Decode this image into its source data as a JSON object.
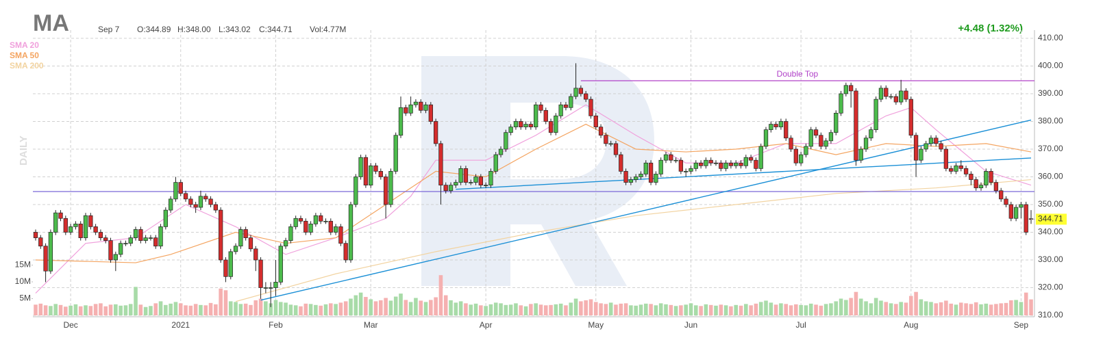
{
  "chart_data": {
    "type": "candlestick",
    "symbol": "MA",
    "date": "Sep 7",
    "ohlc_texts": [
      "O:344.89",
      "H:348.00",
      "L:343.02",
      "C:344.71"
    ],
    "volume_text": "Vol:4.77M",
    "change": "+4.48 (1.32%)",
    "interval": "DAILY",
    "up_color": "#4cbb4c",
    "down_color": "#d42d2d",
    "volume_up_color": "#a8dba8",
    "volume_down_color": "#f5b0b0",
    "categories": [
      null,
      null,
      null,
      null,
      null,
      null,
      null,
      "Dec",
      null,
      null,
      null,
      null,
      null,
      null,
      null,
      null,
      null,
      null,
      null,
      null,
      null,
      null,
      null,
      null,
      null,
      null,
      null,
      null,
      null,
      "2021",
      null,
      null,
      null,
      null,
      null,
      null,
      null,
      null,
      null,
      null,
      null,
      null,
      null,
      null,
      null,
      null,
      null,
      null,
      "Feb",
      null,
      null,
      null,
      null,
      null,
      null,
      null,
      null,
      null,
      null,
      null,
      null,
      null,
      null,
      null,
      null,
      null,
      null,
      "Mar",
      null,
      null,
      null,
      null,
      null,
      null,
      null,
      null,
      null,
      null,
      null,
      null,
      null,
      null,
      null,
      null,
      null,
      null,
      null,
      null,
      null,
      null,
      "Apr",
      null,
      null,
      null,
      null,
      null,
      null,
      null,
      null,
      null,
      null,
      null,
      null,
      null,
      null,
      null,
      null,
      null,
      null,
      null,
      null,
      null,
      "May",
      null,
      null,
      null,
      null,
      null,
      null,
      null,
      null,
      null,
      null,
      null,
      null,
      null,
      null,
      null,
      null,
      null,
      null,
      "Jun",
      null,
      null,
      null,
      null,
      null,
      null,
      null,
      null,
      null,
      null,
      null,
      null,
      null,
      null,
      null,
      null,
      null,
      null,
      null,
      null,
      null,
      "Jul",
      null,
      null,
      null,
      null,
      null,
      null,
      null,
      null,
      null,
      null,
      null,
      null,
      null,
      null,
      null,
      null,
      null,
      null,
      null,
      null,
      null,
      "Aug",
      null,
      null,
      null,
      null,
      null,
      null,
      null,
      null,
      null,
      null,
      null,
      null,
      null,
      null,
      null,
      null,
      null,
      null,
      null,
      null,
      null,
      "Sep",
      null,
      null
    ],
    "open": [
      340,
      338,
      335,
      326,
      340,
      347,
      345,
      340,
      342,
      343,
      338,
      346,
      342,
      340,
      338,
      337,
      330,
      332,
      336,
      336,
      338,
      341,
      337,
      338,
      338,
      335,
      342,
      348,
      352,
      358,
      354,
      352,
      350,
      349,
      353,
      352,
      350,
      348,
      330,
      324,
      333,
      335,
      341,
      338,
      334,
      330,
      320,
      320,
      320,
      322,
      335,
      337,
      342,
      345,
      344,
      340,
      343,
      346,
      344,
      344,
      340,
      342,
      336,
      330,
      350,
      360,
      367,
      357,
      364,
      362,
      360,
      350,
      362,
      375,
      385,
      383,
      386,
      387,
      384,
      386,
      380,
      372,
      357,
      355,
      357,
      358,
      363,
      358,
      358,
      360,
      357,
      357,
      362,
      368,
      370,
      376,
      378,
      380,
      378,
      379,
      378,
      386,
      384,
      380,
      376,
      382,
      386,
      385,
      389,
      392,
      390,
      388,
      382,
      378,
      375,
      372,
      372,
      368,
      362,
      358,
      359,
      360,
      361,
      365,
      358,
      361,
      366,
      368,
      366,
      366,
      362,
      362,
      363,
      365,
      364,
      366,
      365,
      365,
      363,
      365,
      364,
      365,
      364,
      367,
      366,
      363,
      371,
      377,
      379,
      378,
      380,
      374,
      370,
      365,
      368,
      371,
      377,
      375,
      371,
      373,
      376,
      383,
      390,
      393,
      391,
      366,
      370,
      374,
      377,
      388,
      392,
      389,
      389,
      387,
      391,
      388,
      375,
      366,
      370,
      372,
      374,
      372,
      370,
      363,
      362,
      364,
      363,
      361,
      359,
      356,
      357,
      362,
      358,
      355,
      352,
      350,
      345,
      349,
      350,
      344.89
    ],
    "high": [
      341,
      339,
      336,
      341,
      348,
      348,
      346,
      343,
      344,
      344,
      347,
      347,
      343,
      341,
      339,
      338,
      333,
      337,
      337,
      339,
      342,
      342,
      339,
      339,
      339,
      343,
      349,
      353,
      360,
      359,
      355,
      353,
      351,
      355,
      354,
      353,
      351,
      349,
      331,
      334,
      336,
      342,
      342,
      339,
      335,
      331,
      322,
      322,
      330,
      336,
      338,
      343,
      346,
      346,
      345,
      344,
      347,
      347,
      345,
      345,
      343,
      343,
      337,
      351,
      361,
      368,
      368,
      365,
      365,
      363,
      361,
      363,
      376,
      389,
      386,
      389,
      388,
      388,
      387,
      387,
      381,
      373,
      358,
      358,
      359,
      364,
      364,
      359,
      361,
      361,
      358,
      363,
      369,
      371,
      377,
      379,
      381,
      381,
      380,
      380,
      387,
      387,
      385,
      381,
      383,
      387,
      387,
      390,
      401,
      393,
      391,
      389,
      383,
      379,
      376,
      373,
      373,
      369,
      363,
      360,
      361,
      362,
      366,
      366,
      362,
      367,
      369,
      369,
      367,
      367,
      363,
      364,
      366,
      366,
      367,
      367,
      366,
      366,
      366,
      366,
      366,
      366,
      368,
      368,
      367,
      372,
      378,
      380,
      380,
      381,
      381,
      375,
      371,
      369,
      372,
      378,
      378,
      376,
      374,
      377,
      384,
      391,
      394,
      394,
      392,
      371,
      375,
      378,
      389,
      393,
      393,
      390,
      390,
      395,
      392,
      389,
      376,
      371,
      373,
      375,
      375,
      373,
      371,
      364,
      365,
      366,
      364,
      362,
      360,
      358,
      363,
      363,
      359,
      356,
      353,
      351,
      350,
      351,
      351,
      348
    ],
    "low": [
      337,
      334,
      322,
      325,
      339,
      344,
      339,
      339,
      341,
      337,
      337,
      341,
      339,
      337,
      336,
      329,
      326,
      331,
      335,
      335,
      337,
      336,
      336,
      337,
      334,
      334,
      341,
      347,
      351,
      353,
      351,
      349,
      347,
      348,
      351,
      349,
      347,
      329,
      322,
      323,
      332,
      334,
      337,
      333,
      326,
      316,
      318,
      313,
      317,
      321,
      334,
      336,
      341,
      343,
      339,
      339,
      342,
      343,
      343,
      339,
      339,
      335,
      329,
      329,
      349,
      359,
      356,
      356,
      361,
      359,
      345,
      349,
      361,
      374,
      382,
      382,
      385,
      383,
      383,
      379,
      371,
      350,
      354,
      354,
      356,
      357,
      357,
      357,
      357,
      356,
      356,
      356,
      361,
      367,
      369,
      375,
      377,
      377,
      377,
      377,
      377,
      383,
      379,
      375,
      375,
      381,
      384,
      384,
      388,
      389,
      387,
      381,
      377,
      374,
      371,
      371,
      367,
      361,
      357,
      357,
      358,
      359,
      360,
      357,
      357,
      360,
      365,
      365,
      365,
      361,
      360,
      361,
      362,
      363,
      363,
      364,
      364,
      362,
      362,
      363,
      363,
      363,
      363,
      365,
      362,
      362,
      370,
      376,
      377,
      377,
      373,
      369,
      364,
      364,
      367,
      370,
      374,
      370,
      370,
      372,
      375,
      382,
      389,
      385,
      364,
      365,
      369,
      373,
      376,
      387,
      388,
      388,
      386,
      386,
      387,
      374,
      360,
      365,
      369,
      371,
      371,
      369,
      362,
      361,
      361,
      362,
      360,
      357,
      355,
      355,
      356,
      357,
      354,
      351,
      349,
      344,
      344,
      345,
      339,
      343.02
    ],
    "close": [
      338,
      335,
      326,
      340,
      347,
      345,
      340,
      342,
      343,
      338,
      346,
      342,
      340,
      338,
      337,
      330,
      332,
      336,
      336,
      338,
      341,
      337,
      338,
      338,
      335,
      342,
      348,
      352,
      358,
      354,
      352,
      350,
      349,
      353,
      352,
      350,
      348,
      330,
      324,
      333,
      335,
      341,
      338,
      334,
      330,
      320,
      320,
      320,
      322,
      335,
      337,
      342,
      345,
      344,
      340,
      343,
      346,
      344,
      344,
      340,
      342,
      336,
      330,
      350,
      360,
      367,
      357,
      364,
      362,
      360,
      350,
      362,
      375,
      385,
      383,
      386,
      387,
      384,
      386,
      380,
      372,
      357,
      355,
      357,
      358,
      363,
      358,
      358,
      360,
      357,
      357,
      362,
      368,
      370,
      376,
      378,
      380,
      378,
      379,
      378,
      386,
      384,
      380,
      376,
      382,
      386,
      385,
      389,
      392,
      390,
      388,
      382,
      378,
      375,
      372,
      372,
      368,
      362,
      358,
      359,
      360,
      361,
      365,
      358,
      361,
      366,
      368,
      366,
      366,
      362,
      362,
      363,
      365,
      364,
      366,
      365,
      365,
      363,
      365,
      364,
      365,
      364,
      367,
      366,
      363,
      371,
      377,
      379,
      378,
      380,
      374,
      370,
      365,
      368,
      371,
      377,
      375,
      371,
      373,
      376,
      383,
      390,
      393,
      391,
      366,
      370,
      374,
      377,
      388,
      392,
      389,
      389,
      387,
      391,
      388,
      375,
      366,
      370,
      372,
      374,
      372,
      370,
      363,
      362,
      364,
      363,
      361,
      359,
      356,
      357,
      362,
      358,
      355,
      352,
      350,
      345,
      349,
      350,
      340,
      344.71
    ],
    "volume": [
      3.2,
      3.5,
      3.0,
      2.8,
      3.4,
      3.1,
      2.6,
      2.9,
      3.3,
      2.7,
      3.0,
      2.8,
      3.4,
      3.6,
      2.7,
      3.2,
      3.3,
      2.9,
      3.0,
      3.4,
      8.5,
      3.2,
      2.5,
      2.8,
      3.6,
      4.2,
      3.1,
      3.5,
      4.0,
      3.6,
      3.0,
      2.9,
      3.4,
      3.1,
      3.0,
      3.7,
      3.3,
      8.0,
      7.5,
      4.2,
      4.0,
      3.4,
      3.5,
      3.1,
      4.5,
      5.0,
      4.2,
      3.6,
      4.6,
      4.0,
      3.8,
      3.2,
      3.0,
      2.7,
      3.5,
      3.4,
      3.1,
      2.9,
      3.3,
      3.6,
      3.4,
      3.8,
      4.2,
      5.0,
      6.0,
      6.8,
      5.5,
      4.8,
      4.2,
      4.5,
      5.2,
      4.4,
      5.6,
      6.5,
      4.6,
      4.0,
      5.2,
      4.4,
      4.0,
      4.6,
      5.4,
      12.0,
      6.0,
      4.5,
      3.8,
      4.2,
      3.6,
      3.2,
      3.5,
      3.0,
      2.8,
      3.3,
      3.8,
      3.6,
      3.1,
      3.2,
      3.6,
      3.0,
      2.7,
      3.4,
      3.6,
      3.2,
      3.0,
      3.1,
      3.3,
      3.5,
      3.0,
      3.8,
      5.0,
      4.2,
      4.5,
      4.8,
      4.0,
      3.6,
      3.4,
      3.8,
      3.2,
      3.5,
      3.6,
      3.0,
      2.9,
      3.2,
      3.5,
      3.4,
      3.0,
      3.6,
      3.3,
      3.1,
      2.8,
      3.0,
      3.2,
      3.6,
      3.0,
      2.8,
      3.3,
      3.1,
      2.9,
      3.2,
      3.0,
      2.7,
      3.1,
      2.9,
      3.4,
      3.0,
      3.5,
      4.0,
      4.4,
      3.8,
      3.2,
      3.6,
      3.4,
      3.0,
      3.3,
      3.1,
      3.0,
      3.5,
      3.2,
      2.9,
      3.4,
      3.6,
      4.2,
      5.0,
      4.6,
      5.2,
      7.0,
      5.0,
      4.2,
      3.6,
      5.2,
      4.4,
      4.0,
      3.6,
      3.4,
      4.0,
      3.8,
      5.8,
      7.0,
      4.8,
      4.2,
      4.0,
      3.6,
      3.9,
      4.4,
      3.5,
      3.2,
      3.8,
      3.6,
      3.4,
      3.9,
      3.3,
      3.5,
      3.2,
      3.4,
      3.6,
      3.7,
      4.5,
      4.6,
      4.0,
      6.8,
      4.77
    ],
    "series": [
      {
        "name": "SMA 20",
        "color": "#f0a0dc",
        "x": [
          0,
          10,
          20,
          30,
          40,
          50,
          60,
          70,
          75,
          80,
          90,
          100,
          110,
          120,
          130,
          140,
          150,
          160,
          170,
          175,
          180,
          190,
          199
        ],
        "values": [
          318,
          336,
          338,
          350,
          342,
          332,
          338,
          345,
          353,
          366,
          366,
          375,
          386,
          375,
          365,
          365,
          372,
          372,
          382,
          385,
          377,
          362,
          357
        ]
      },
      {
        "name": "SMA 50",
        "color": "#f4a460",
        "x": [
          0,
          20,
          27,
          40,
          50,
          60,
          70,
          80,
          90,
          100,
          110,
          120,
          130,
          140,
          150,
          160,
          170,
          180,
          190,
          199
        ],
        "values": [
          330,
          329,
          332,
          340,
          336,
          338,
          350,
          362,
          360,
          370,
          379,
          370,
          369,
          370,
          372,
          368,
          372,
          371,
          372,
          369
        ]
      },
      {
        "name": "SMA 200",
        "color": "#f2d3a0",
        "x": [
          40,
          60,
          80,
          100,
          120,
          140,
          160,
          180,
          199
        ],
        "values": [
          315,
          325,
          333,
          340,
          346,
          350,
          354,
          356,
          359
        ]
      }
    ],
    "hlines": [
      {
        "value": 354.7,
        "color": "#7b68d8"
      },
      {
        "value": 394.7,
        "start": 109,
        "color": "#b040c8",
        "label": "Double Top"
      }
    ],
    "trendlines": [
      {
        "x": [
          45,
          199
        ],
        "y": [
          315.5,
          380.5
        ],
        "color": "#1a8fd6"
      },
      {
        "x": [
          84,
          199
        ],
        "y": [
          355.5,
          366.8
        ],
        "color": "#1a8fd6"
      }
    ],
    "last_price": {
      "value": 344.71,
      "label": "344.71"
    },
    "ylim": [
      310,
      410
    ],
    "yticks": [
      {
        "value": 310,
        "label": "310.00"
      },
      {
        "value": 320,
        "label": "320.00"
      },
      {
        "value": 330,
        "label": "330.00"
      },
      {
        "value": 340,
        "label": "340.00"
      },
      {
        "value": 350,
        "label": "350.00"
      },
      {
        "value": 360,
        "label": "360.00"
      },
      {
        "value": 370,
        "label": "370.00"
      },
      {
        "value": 380,
        "label": "380.00"
      },
      {
        "value": 390,
        "label": "390.00"
      },
      {
        "value": 400,
        "label": "400.00"
      },
      {
        "value": 410,
        "label": "410.00"
      }
    ],
    "vlim": [
      0,
      20
    ],
    "vticks": [
      {
        "value": 5,
        "label": "5M"
      },
      {
        "value": 10,
        "label": "10M"
      },
      {
        "value": 15,
        "label": "15M"
      }
    ],
    "grid": true
  }
}
